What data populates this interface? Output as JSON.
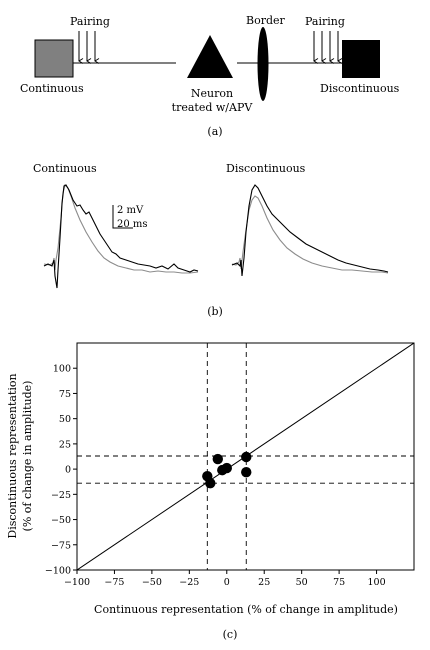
{
  "panel_a": {
    "label": "(a)",
    "left_input": "Continuous",
    "left_pairing": "Pairing",
    "neuron_label_line1": "Neuron",
    "neuron_label_line2": "treated w/APV",
    "border_label": "Border",
    "right_pairing": "Pairing",
    "right_input": "Discontinuous",
    "colors": {
      "continuous_square": "#808080",
      "discontinuous_square": "#000000"
    }
  },
  "panel_b": {
    "label": "(b)",
    "left_title": "Continuous",
    "right_title": "Discontinuous",
    "scale_mv": "2 mV",
    "scale_ms": "20 ms",
    "colors": {
      "after": "#000000",
      "before": "#8c8c8c"
    }
  },
  "panel_c": {
    "label": "(c)",
    "chart_data": {
      "type": "scatter",
      "xlabel": "Continuous representation (% of change in amplitude)",
      "ylabel_line1": "Discontinuous representation",
      "ylabel_line2": "(% of change in amplitude)",
      "xlim": [
        -100,
        125
      ],
      "ylim": [
        -100,
        125
      ],
      "xticks": [
        -100,
        -75,
        -50,
        -25,
        0,
        25,
        50,
        75,
        100
      ],
      "yticks": [
        -100,
        -75,
        -50,
        -25,
        0,
        25,
        50,
        75,
        100
      ],
      "points": [
        {
          "x": -6,
          "y": 10
        },
        {
          "x": -13,
          "y": -7
        },
        {
          "x": -11,
          "y": -14
        },
        {
          "x": -3,
          "y": -1
        },
        {
          "x": 0,
          "y": 1
        },
        {
          "x": 13,
          "y": 12
        },
        {
          "x": 13,
          "y": -3
        }
      ],
      "reference_lines": {
        "diagonal": "unity",
        "vertical_x": [
          -13,
          13
        ],
        "horizontal_y": [
          13,
          -14
        ]
      },
      "grid": false
    }
  }
}
